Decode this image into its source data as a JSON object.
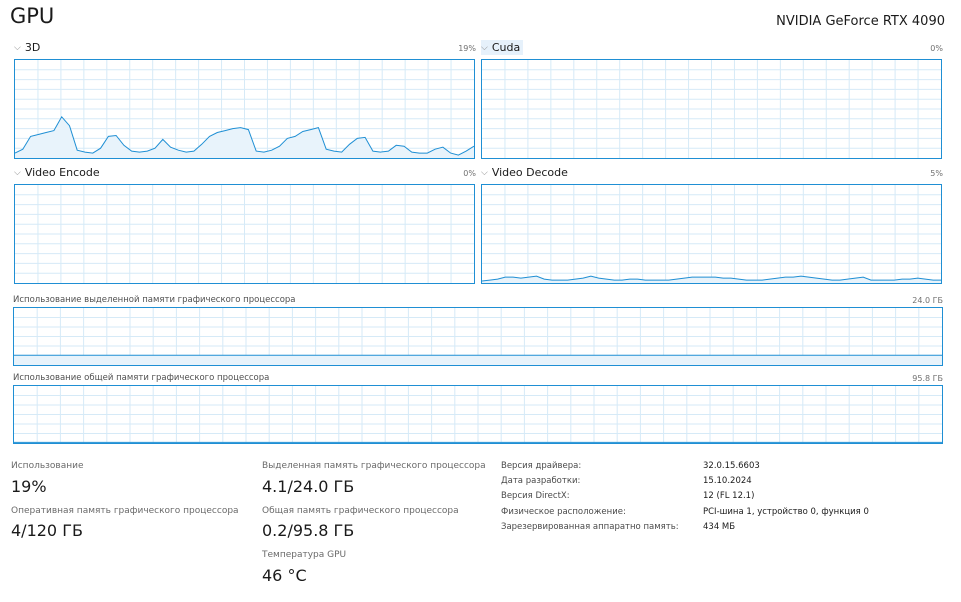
{
  "header": {
    "title": "GPU",
    "device": "NVIDIA GeForce RTX 4090"
  },
  "engines": [
    {
      "id": "3d",
      "label": "3D",
      "percent": "19%",
      "series": [
        5,
        9,
        22,
        24,
        26,
        28,
        42,
        33,
        8,
        6,
        5,
        10,
        22,
        23,
        13,
        7,
        6,
        7,
        10,
        19,
        11,
        8,
        6,
        7,
        14,
        22,
        26,
        28,
        30,
        31,
        29,
        7,
        6,
        8,
        12,
        20,
        22,
        27,
        29,
        31,
        9,
        7,
        6,
        14,
        20,
        21,
        7,
        6,
        7,
        13,
        12,
        6,
        5,
        5,
        9,
        11,
        5,
        3,
        7,
        12
      ],
      "active": false
    },
    {
      "id": "cuda",
      "label": "Cuda",
      "percent": "0%",
      "series": [],
      "active": true
    },
    {
      "id": "video-encode",
      "label": "Video Encode",
      "percent": "0%",
      "series": [],
      "active": false
    },
    {
      "id": "video-decode",
      "label": "Video Decode",
      "percent": "5%",
      "series": [
        2,
        3,
        4,
        6,
        6,
        5,
        6,
        7,
        4,
        3,
        3,
        3,
        4,
        5,
        7,
        5,
        4,
        3,
        3,
        4,
        4,
        3,
        3,
        3,
        3,
        4,
        5,
        6,
        6,
        6,
        6,
        5,
        5,
        4,
        3,
        3,
        3,
        4,
        5,
        6,
        6,
        7,
        6,
        5,
        4,
        3,
        3,
        4,
        5,
        6,
        3,
        3,
        3,
        3,
        4,
        4,
        5,
        4,
        3,
        3
      ],
      "active": false
    }
  ],
  "memory": {
    "dedicated": {
      "label": "Использование выделенной памяти графического процессора",
      "max": "24.0 ГБ",
      "fill_fraction": 0.17
    },
    "shared": {
      "label": "Использование общей памяти графического процессора",
      "max": "95.8 ГБ",
      "fill_fraction": 0.002
    }
  },
  "stats": {
    "utilization_label": "Использование",
    "utilization_value": "19%",
    "gpu_memory_label": "Оперативная память графического процессора",
    "gpu_memory_value": "4/120 ГБ",
    "dedicated_label": "Выделенная память графического процессора",
    "dedicated_value": "4.1/24.0 ГБ",
    "shared_label": "Общая память графического процессора",
    "shared_value": "0.2/95.8 ГБ",
    "temp_label": "Температура GPU",
    "temp_value": "46 °C"
  },
  "info": [
    {
      "key": "Версия драйвера:",
      "value": "32.0.15.6603"
    },
    {
      "key": "Дата разработки:",
      "value": "15.10.2024"
    },
    {
      "key": "Версия DirectX:",
      "value": "12 (FL 12.1)"
    },
    {
      "key": "Физическое расположение:",
      "value": "PCI-шина 1, устройство 0, функция 0"
    },
    {
      "key": "Зарезервированная аппаратно память:",
      "value": "434 МБ"
    }
  ],
  "colors": {
    "accent": "#1f8fd4",
    "grid": "#d6eaf7",
    "fill": "#e8f3fb",
    "active_label_bg": "#e6f1fb"
  }
}
